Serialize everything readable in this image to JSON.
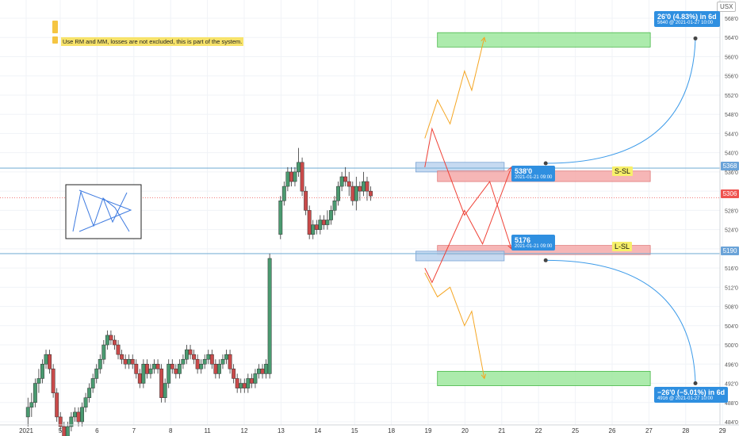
{
  "symbol": "USX",
  "notice": "Use RM and MM, losses are not excluded, this is part of the system.",
  "price_tags": {
    "upper_line": "5368",
    "current": "5306",
    "lower_line": "5190"
  },
  "callouts": {
    "top": {
      "line1": "26'0 (4.83%) in 6d",
      "line2": "5640 @ 2021-01-27  10:00"
    },
    "bottom": {
      "line1": "−26'0 (−5.01%) in 6d",
      "line2": "4916 @ 2021-01-27  10:00"
    },
    "short_stop": {
      "line1": "538'0",
      "line2": "2021-01-21 09:00"
    },
    "long_stop": {
      "line1": "5176",
      "line2": "2021-01-21 09:00"
    }
  },
  "zone_labels": {
    "short": "S-SL",
    "long": "L-SL"
  },
  "colors": {
    "up_candle": "#4a9a70",
    "down_candle": "#c94a4a",
    "hline": "#7fb3d8",
    "price_line": "#ef5350",
    "bull_path": "#f5a623",
    "bear_path": "#ef4136",
    "target_zone": "#9ee89e",
    "stop_zone": "#f5a9a9",
    "entry_zone": "#bcd4ef",
    "projection": "#3d9be9"
  },
  "chart_data": {
    "type": "candlestick",
    "x_tick_labels": [
      "2021",
      "5",
      "6",
      "7",
      "8",
      "11",
      "12",
      "13",
      "14",
      "15",
      "18",
      "19",
      "20",
      "21",
      "22",
      "25",
      "26",
      "27",
      "28",
      "29"
    ],
    "y_tick_labels": [
      "484'0",
      "488'0",
      "492'0",
      "496'0",
      "500'0",
      "504'0",
      "508'0",
      "512'0",
      "516'0",
      "520'0",
      "524'0",
      "528'0",
      "532'0",
      "536'0",
      "540'0",
      "544'0",
      "548'0",
      "552'0",
      "556'0",
      "560'0",
      "564'0",
      "568'0"
    ],
    "ylim": [
      482,
      570
    ],
    "xlim": [
      0,
      20
    ],
    "grid": true,
    "candles": [
      [
        0.05,
        485,
        487,
        483,
        489
      ],
      [
        0.15,
        487,
        488,
        485,
        490
      ],
      [
        0.25,
        488,
        492,
        487,
        493
      ],
      [
        0.35,
        492,
        493,
        490,
        495
      ],
      [
        0.45,
        493,
        496,
        492,
        497
      ],
      [
        0.55,
        496,
        498,
        495,
        499
      ],
      [
        0.65,
        498,
        495,
        494,
        499
      ],
      [
        0.75,
        495,
        490,
        489,
        496
      ],
      [
        0.85,
        490,
        485,
        484,
        491
      ],
      [
        0.95,
        485,
        483,
        482,
        486
      ],
      [
        1.05,
        483,
        481,
        480,
        484
      ],
      [
        1.15,
        481,
        483,
        480,
        484
      ],
      [
        1.25,
        483,
        485,
        482,
        486
      ],
      [
        1.35,
        485,
        486,
        484,
        487
      ],
      [
        1.45,
        486,
        484,
        483,
        487
      ],
      [
        1.55,
        484,
        487,
        483,
        488
      ],
      [
        1.65,
        487,
        489,
        486,
        490
      ],
      [
        1.75,
        489,
        491,
        488,
        492
      ],
      [
        1.85,
        491,
        493,
        490,
        494
      ],
      [
        1.95,
        493,
        495,
        492,
        496
      ],
      [
        2.05,
        495,
        497,
        494,
        498
      ],
      [
        2.15,
        497,
        500,
        496,
        501
      ],
      [
        2.25,
        500,
        502,
        499,
        503
      ],
      [
        2.35,
        502,
        501,
        500,
        503
      ],
      [
        2.45,
        501,
        500,
        499,
        502
      ],
      [
        2.55,
        500,
        498,
        497,
        501
      ],
      [
        2.65,
        498,
        497,
        496,
        499
      ],
      [
        2.75,
        497,
        496,
        495,
        498
      ],
      [
        2.85,
        496,
        497,
        495,
        498
      ],
      [
        2.95,
        497,
        496,
        495,
        498
      ],
      [
        3.05,
        496,
        494,
        493,
        497
      ],
      [
        3.15,
        494,
        492,
        491,
        495
      ],
      [
        3.25,
        492,
        496,
        491,
        497
      ],
      [
        3.35,
        496,
        494,
        493,
        497
      ],
      [
        3.45,
        494,
        495,
        493,
        496
      ],
      [
        3.55,
        495,
        496,
        494,
        497
      ],
      [
        3.65,
        496,
        495,
        494,
        497
      ],
      [
        3.75,
        495,
        489,
        488,
        496
      ],
      [
        3.85,
        489,
        492,
        488,
        493
      ],
      [
        3.95,
        492,
        496,
        491,
        497
      ],
      [
        4.05,
        496,
        495,
        494,
        497
      ],
      [
        4.15,
        495,
        494,
        493,
        496
      ],
      [
        4.25,
        494,
        496,
        493,
        497
      ],
      [
        4.35,
        496,
        497,
        495,
        498
      ],
      [
        4.45,
        497,
        499,
        496,
        500
      ],
      [
        4.55,
        499,
        498,
        497,
        500
      ],
      [
        4.65,
        498,
        497,
        496,
        499
      ],
      [
        4.75,
        497,
        495,
        494,
        498
      ],
      [
        4.85,
        495,
        496,
        494,
        497
      ],
      [
        4.95,
        496,
        497,
        495,
        498
      ],
      [
        5.05,
        497,
        498,
        496,
        499
      ],
      [
        5.15,
        498,
        496,
        495,
        499
      ],
      [
        5.25,
        496,
        494,
        493,
        497
      ],
      [
        5.35,
        494,
        496,
        493,
        497
      ],
      [
        5.45,
        496,
        497,
        495,
        498
      ],
      [
        5.55,
        497,
        498,
        496,
        499
      ],
      [
        5.65,
        498,
        495,
        494,
        499
      ],
      [
        5.75,
        495,
        493,
        492,
        496
      ],
      [
        5.85,
        493,
        491,
        490,
        494
      ],
      [
        5.95,
        491,
        492,
        490,
        493
      ],
      [
        6.05,
        492,
        491,
        490,
        493
      ],
      [
        6.15,
        491,
        493,
        490,
        494
      ],
      [
        6.25,
        493,
        492,
        491,
        494
      ],
      [
        6.35,
        492,
        494,
        491,
        495
      ],
      [
        6.45,
        494,
        495,
        493,
        496
      ],
      [
        6.55,
        495,
        494,
        493,
        496
      ],
      [
        6.65,
        494,
        496,
        493,
        497
      ],
      [
        6.75,
        494,
        518,
        493,
        519
      ],
      [
        7.05,
        523,
        530,
        522,
        531
      ],
      [
        7.15,
        530,
        533,
        529,
        534
      ],
      [
        7.25,
        533,
        536,
        532,
        537
      ],
      [
        7.35,
        536,
        534,
        533,
        537
      ],
      [
        7.45,
        534,
        536,
        533,
        537
      ],
      [
        7.55,
        536,
        538,
        535,
        541
      ],
      [
        7.65,
        538,
        532,
        531,
        539
      ],
      [
        7.75,
        532,
        528,
        527,
        533
      ],
      [
        7.85,
        528,
        523,
        522,
        529
      ],
      [
        7.95,
        523,
        525,
        522,
        526
      ],
      [
        8.05,
        525,
        524,
        523,
        526
      ],
      [
        8.15,
        524,
        526,
        523,
        527
      ],
      [
        8.25,
        526,
        525,
        524,
        527
      ],
      [
        8.35,
        525,
        526,
        524,
        528
      ],
      [
        8.45,
        526,
        528,
        525,
        529
      ],
      [
        8.55,
        528,
        530,
        527,
        531
      ],
      [
        8.65,
        530,
        533,
        529,
        534
      ],
      [
        8.75,
        533,
        535,
        532,
        536
      ],
      [
        8.85,
        535,
        534,
        533,
        537
      ],
      [
        8.95,
        534,
        533,
        531,
        536
      ],
      [
        9.05,
        533,
        530,
        529,
        534
      ],
      [
        9.15,
        530,
        533,
        528,
        535
      ],
      [
        9.25,
        533,
        532,
        530,
        534
      ],
      [
        9.35,
        532,
        534,
        531,
        536
      ],
      [
        9.45,
        534,
        532,
        530,
        535
      ],
      [
        9.55,
        532,
        531,
        530,
        533
      ]
    ],
    "current_price": 530.6,
    "upper_line": 536.8,
    "lower_line": 519.0,
    "zones": [
      {
        "kind": "target",
        "x0": 11.4,
        "x1": 17.3,
        "y0": 562.0,
        "y1": 565.0
      },
      {
        "kind": "entry",
        "x0": 10.8,
        "x1": 13.25,
        "y0": 536.0,
        "y1": 538.0
      },
      {
        "kind": "stop",
        "x0": 11.4,
        "x1": 17.3,
        "y0": 534.0,
        "y1": 536.2
      },
      {
        "kind": "stop",
        "x0": 11.4,
        "x1": 17.3,
        "y0": 518.8,
        "y1": 520.7
      },
      {
        "kind": "entry",
        "x0": 10.8,
        "x1": 13.25,
        "y0": 517.5,
        "y1": 519.5
      },
      {
        "kind": "target",
        "x0": 11.4,
        "x1": 17.3,
        "y0": 491.5,
        "y1": 494.5
      }
    ],
    "paths": [
      {
        "kind": "bull",
        "points": [
          [
            11.05,
            543
          ],
          [
            11.4,
            551
          ],
          [
            11.75,
            546
          ],
          [
            12.15,
            557
          ],
          [
            12.35,
            553
          ],
          [
            12.7,
            564
          ]
        ]
      },
      {
        "kind": "bear",
        "points": [
          [
            11.05,
            537
          ],
          [
            11.25,
            545
          ],
          [
            12.15,
            527
          ],
          [
            12.85,
            534
          ],
          [
            13.45,
            520
          ]
        ]
      },
      {
        "kind": "bear",
        "points": [
          [
            11.05,
            516
          ],
          [
            11.25,
            513
          ],
          [
            12.15,
            528
          ],
          [
            12.65,
            521
          ],
          [
            13.45,
            537
          ]
        ]
      },
      {
        "kind": "bull",
        "points": [
          [
            11.05,
            515
          ],
          [
            11.4,
            510
          ],
          [
            11.75,
            512
          ],
          [
            12.15,
            504
          ],
          [
            12.35,
            507
          ],
          [
            12.7,
            493
          ]
        ]
      }
    ],
    "projections": [
      {
        "from": [
          14.4,
          537.8
        ],
        "to": [
          18.55,
          563.8
        ]
      },
      {
        "from": [
          14.4,
          517.6
        ],
        "to": [
          18.55,
          492.0
        ]
      }
    ]
  }
}
